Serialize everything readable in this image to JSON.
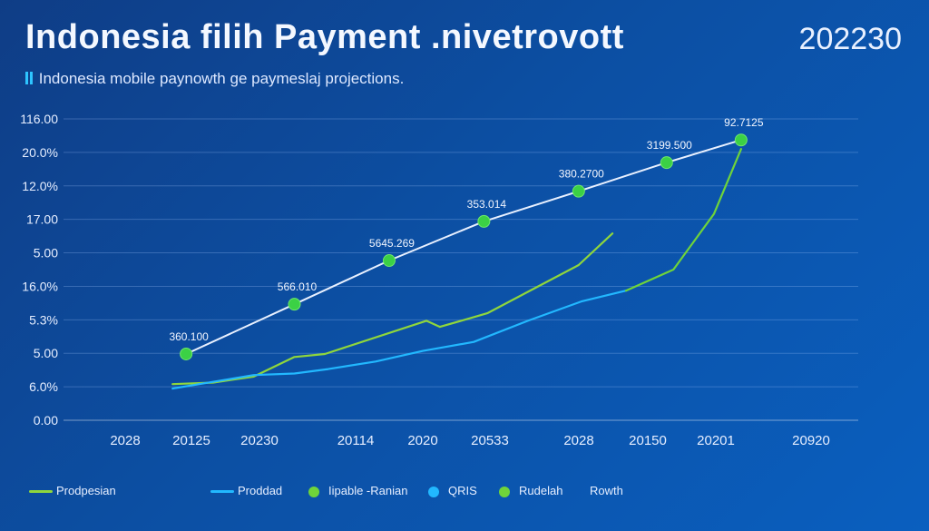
{
  "header": {
    "title": "Indonesia filih Payment .nivetrovott",
    "year": "202230",
    "subtitle": "Indonesia mobile paynowth ge paymeslaj projections."
  },
  "chart_data": {
    "type": "line",
    "y_tick_labels": [
      "116.00",
      "20.0%",
      "12.0%",
      "17.00",
      "5.00",
      "16.0%",
      "5.3%",
      "5.00",
      "6.0%",
      "0.00"
    ],
    "x_tick_labels": [
      "2028",
      "20125",
      "20230",
      "20114",
      "2020",
      "20533",
      "2028",
      "20150",
      "20201",
      "20920"
    ],
    "ylim": [
      0,
      10
    ],
    "grid": true,
    "legend_position": "bottom",
    "series": [
      {
        "key": "white",
        "color": "#e8f0ff",
        "x": [
          0.9,
          2.5,
          3.9,
          5.3,
          6.7,
          8.0,
          9.1
        ],
        "y": [
          2.2,
          3.85,
          5.3,
          6.6,
          7.6,
          8.55,
          9.3
        ],
        "point_labels": [
          "360.100",
          "566.010",
          "5645.269",
          "353.014",
          "380.2700",
          "3199.500",
          "92.7125"
        ]
      },
      {
        "key": "green",
        "color": "#8fd63c",
        "x": [
          0.7,
          1.3,
          1.9,
          2.5,
          2.95,
          4.45,
          4.65,
          5.35,
          6.15,
          6.7,
          7.2
        ],
        "y": [
          1.2,
          1.25,
          1.45,
          2.1,
          2.2,
          3.3,
          3.1,
          3.55,
          4.5,
          5.15,
          6.2
        ]
      },
      {
        "key": "blue",
        "color": "#22b8ff",
        "x": [
          0.7,
          1.9,
          2.5,
          3.0,
          3.7,
          4.4,
          5.15,
          5.95,
          6.75,
          7.4
        ],
        "y": [
          1.05,
          1.5,
          1.55,
          1.7,
          1.95,
          2.3,
          2.6,
          3.3,
          3.95,
          4.3
        ]
      },
      {
        "key": "green2",
        "color": "#6fd43a",
        "x": [
          7.4,
          8.1,
          8.7,
          9.1
        ],
        "y": [
          4.3,
          5.0,
          6.85,
          9.0
        ]
      }
    ],
    "legend": [
      {
        "label": "Prodpesian",
        "kind": "line",
        "color": "#8fd63c"
      },
      {
        "label": "Proddad",
        "kind": "line",
        "color": "#22b8ff"
      },
      {
        "label": "Iipable -Ranian",
        "kind": "dot",
        "color": "#6fd43a"
      },
      {
        "label": "QRIS",
        "kind": "dot",
        "color": "#22b8ff"
      },
      {
        "label": "Rudelah",
        "kind": "dot",
        "color": "#6fd43a"
      },
      {
        "label": "Rowth",
        "kind": "none",
        "color": ""
      }
    ]
  }
}
